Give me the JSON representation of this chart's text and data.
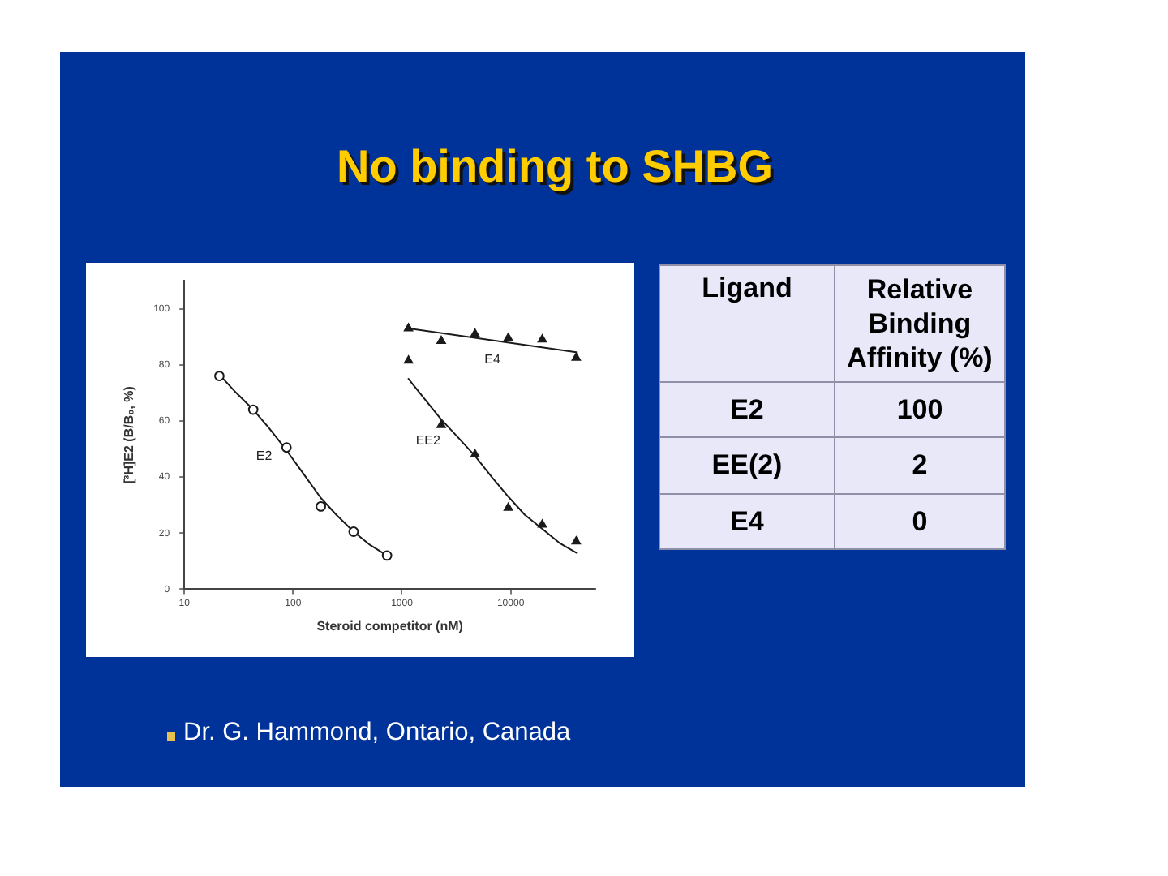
{
  "chart_data": [
    {
      "type": "scatter",
      "title": "No binding to SHBG",
      "xlabel": "Steroid competitor (nM)",
      "ylabel": "[³H]E2 (B/B₀, %)",
      "log": "x",
      "xlim": [
        10,
        60000
      ],
      "xticks": [
        10,
        100,
        1000,
        10000
      ],
      "ylim": [
        0,
        110
      ],
      "yticks": [
        0,
        20,
        40,
        60,
        80,
        100
      ],
      "series": [
        {
          "name": "E2",
          "type": "scatter",
          "color": "#1a1a1a",
          "marker": "circle",
          "x": [
            21,
            43,
            87,
            180,
            360,
            730
          ],
          "values": [
            76,
            64,
            50.5,
            29.5,
            20.5,
            12
          ]
        },
        {
          "type": "line",
          "color": "#1a1a1a",
          "marker": "none",
          "x": [
            21,
            30,
            43,
            60,
            87,
            120,
            180,
            250,
            360,
            500,
            730
          ],
          "values": [
            76.5,
            70,
            64,
            57.5,
            49.5,
            42,
            32.5,
            26.5,
            20.5,
            16,
            12
          ]
        },
        {
          "name": "EE2",
          "type": "scatter",
          "color": "#1a1a1a",
          "marker": "triangle",
          "x": [
            1150,
            2300,
            4700,
            9500,
            19500,
            40000
          ],
          "values": [
            81.5,
            58.5,
            48,
            29,
            23,
            17
          ]
        },
        {
          "type": "line",
          "color": "#1a1a1a",
          "marker": "none",
          "x": [
            1150,
            1600,
            2300,
            3300,
            4700,
            6700,
            9500,
            13500,
            19500,
            28000,
            40000
          ],
          "values": [
            75,
            68,
            60.5,
            54,
            47.5,
            40,
            33,
            26.5,
            21.5,
            16.5,
            13
          ]
        },
        {
          "name": "E4",
          "type": "scatter",
          "color": "#1a1a1a",
          "marker": "triangle",
          "x": [
            1150,
            2300,
            4700,
            9500,
            19500,
            40000
          ],
          "values": [
            93,
            88.5,
            91,
            89.5,
            89,
            82.5
          ]
        },
        {
          "type": "line",
          "color": "#1a1a1a",
          "marker": "none",
          "x": [
            1150,
            40000
          ],
          "values": [
            93,
            84.5
          ]
        }
      ],
      "annotations": [
        "Dr. G. Hammond, Ontario, Canada"
      ]
    },
    {
      "type": "other",
      "xlabel": "Ligand",
      "ylabel": "Relative Binding Affinity (%)",
      "categories": [
        "E2",
        "EE(2)",
        "E4"
      ],
      "values": [
        100,
        2,
        0
      ],
      "data_labels": true
    }
  ]
}
